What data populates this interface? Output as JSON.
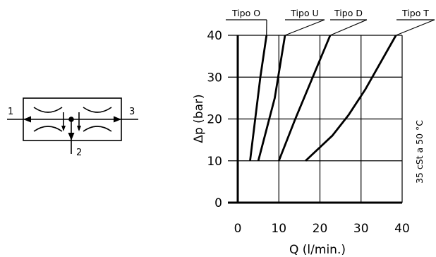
{
  "schematic": {
    "port_in": "1",
    "port_out": "3",
    "port_bypass": "2"
  },
  "chart_data": {
    "type": "line",
    "title": "",
    "xlabel": "Q (l/min.)",
    "ylabel": "Δp (bar)",
    "side_note": "35 cSt a 50 °C",
    "xlim": [
      0,
      40
    ],
    "ylim": [
      0,
      40
    ],
    "x_ticks": [
      "0",
      "10",
      "20",
      "30",
      "40"
    ],
    "y_ticks": [
      "0",
      "10",
      "20",
      "30",
      "40"
    ],
    "grid": true,
    "series": [
      {
        "name": "Tipo O",
        "points": [
          [
            3,
            10
          ],
          [
            5.5,
            30
          ],
          [
            7,
            40
          ]
        ]
      },
      {
        "name": "Tipo U",
        "points": [
          [
            5,
            10
          ],
          [
            9,
            25
          ],
          [
            11.5,
            40
          ]
        ]
      },
      {
        "name": "Tipo D",
        "points": [
          [
            10,
            10
          ],
          [
            14,
            20
          ],
          [
            22.5,
            40
          ]
        ]
      },
      {
        "name": "Tipo T",
        "points": [
          [
            16.5,
            10
          ],
          [
            23,
            16
          ],
          [
            27,
            21
          ],
          [
            31,
            27
          ],
          [
            38.5,
            40
          ]
        ]
      }
    ]
  }
}
